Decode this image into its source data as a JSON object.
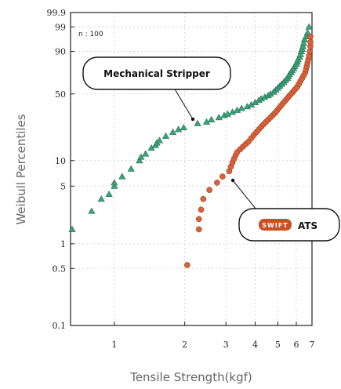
{
  "chart_data": {
    "type": "scatter",
    "xlabel": "Tensile Strength(kgf)",
    "ylabel": "Weibull Percentiles",
    "x_scale": "log",
    "y_scale": "weibull",
    "xlim": [
      0.65,
      7.0
    ],
    "ylim": [
      0.1,
      99.9
    ],
    "x_ticks": [
      {
        "value": 1,
        "label": "1"
      },
      {
        "value": 2,
        "label": "2"
      },
      {
        "value": 3,
        "label": "3"
      },
      {
        "value": 4,
        "label": "4"
      },
      {
        "value": 5,
        "label": "5"
      },
      {
        "value": 6,
        "label": "6"
      },
      {
        "value": 7,
        "label": "7"
      }
    ],
    "y_ticks": [
      {
        "value": 0.1,
        "label": "0.1"
      },
      {
        "value": 0.5,
        "label": "0.5"
      },
      {
        "value": 1,
        "label": "1"
      },
      {
        "value": 5,
        "label": "5"
      },
      {
        "value": 10,
        "label": "10"
      },
      {
        "value": 50,
        "label": "50"
      },
      {
        "value": 90,
        "label": "90"
      },
      {
        "value": 99,
        "label": "99"
      },
      {
        "value": 99.9,
        "label": "99.9"
      }
    ],
    "grid": true,
    "annotation": "n : 100",
    "series": [
      {
        "name": "Mechanical Stripper",
        "marker": "triangle",
        "color": "#3aa37a",
        "points": [
          [
            0.66,
            1.5
          ],
          [
            0.8,
            2.5
          ],
          [
            0.88,
            3.5
          ],
          [
            0.95,
            4.0
          ],
          [
            1.0,
            5.0
          ],
          [
            1.0,
            5.5
          ],
          [
            1.08,
            6.5
          ],
          [
            1.18,
            8.0
          ],
          [
            1.28,
            10.0
          ],
          [
            1.3,
            11.0
          ],
          [
            1.36,
            12.0
          ],
          [
            1.44,
            14.0
          ],
          [
            1.5,
            15.0
          ],
          [
            1.52,
            16.0
          ],
          [
            1.56,
            17.0
          ],
          [
            1.66,
            19.0
          ],
          [
            1.78,
            21.0
          ],
          [
            1.88,
            22.5
          ],
          [
            1.98,
            23.5
          ],
          [
            2.27,
            26.0
          ],
          [
            2.48,
            27.0
          ],
          [
            2.6,
            28.5
          ],
          [
            2.8,
            30.0
          ],
          [
            2.95,
            31.5
          ],
          [
            3.05,
            32.5
          ],
          [
            3.2,
            34.0
          ],
          [
            3.35,
            35.5
          ],
          [
            3.5,
            37.0
          ],
          [
            3.7,
            38.5
          ],
          [
            3.85,
            40.0
          ],
          [
            4.0,
            42.0
          ],
          [
            4.15,
            44.0
          ],
          [
            4.25,
            45.5
          ],
          [
            4.4,
            47.0
          ],
          [
            4.55,
            48.5
          ],
          [
            4.65,
            50.0
          ],
          [
            4.8,
            52.0
          ],
          [
            4.9,
            54.0
          ],
          [
            5.0,
            56.0
          ],
          [
            5.1,
            58.0
          ],
          [
            5.2,
            60.0
          ],
          [
            5.3,
            62.0
          ],
          [
            5.4,
            64.0
          ],
          [
            5.5,
            66.0
          ],
          [
            5.55,
            68.0
          ],
          [
            5.6,
            70.0
          ],
          [
            5.7,
            72.0
          ],
          [
            5.75,
            74.0
          ],
          [
            5.85,
            76.0
          ],
          [
            5.9,
            78.0
          ],
          [
            6.0,
            80.0
          ],
          [
            6.05,
            82.0
          ],
          [
            6.1,
            84.0
          ],
          [
            6.2,
            86.0
          ],
          [
            6.25,
            88.0
          ],
          [
            6.3,
            90.0
          ],
          [
            6.35,
            91.5
          ],
          [
            6.4,
            93.0
          ],
          [
            6.45,
            94.5
          ],
          [
            6.5,
            96.0
          ],
          [
            6.6,
            97.0
          ],
          [
            6.7,
            98.0
          ],
          [
            6.8,
            99.0
          ]
        ]
      },
      {
        "name": "ATS",
        "marker": "circle",
        "color": "#d8623a",
        "points": [
          [
            2.05,
            0.55
          ],
          [
            2.3,
            1.5
          ],
          [
            2.3,
            2.0
          ],
          [
            2.35,
            2.6
          ],
          [
            2.4,
            3.5
          ],
          [
            2.55,
            4.5
          ],
          [
            2.75,
            5.5
          ],
          [
            2.9,
            6.5
          ],
          [
            3.1,
            7.5
          ],
          [
            3.15,
            8.5
          ],
          [
            3.2,
            9.5
          ],
          [
            3.25,
            10.5
          ],
          [
            3.3,
            11.5
          ],
          [
            3.35,
            12.5
          ],
          [
            3.45,
            13.5
          ],
          [
            3.55,
            14.5
          ],
          [
            3.65,
            15.5
          ],
          [
            3.75,
            16.5
          ],
          [
            3.85,
            18.0
          ],
          [
            3.95,
            19.5
          ],
          [
            4.05,
            21.0
          ],
          [
            4.15,
            22.5
          ],
          [
            4.25,
            24.0
          ],
          [
            4.35,
            25.5
          ],
          [
            4.45,
            27.0
          ],
          [
            4.55,
            28.5
          ],
          [
            4.65,
            30.0
          ],
          [
            4.75,
            31.5
          ],
          [
            4.85,
            33.0
          ],
          [
            4.95,
            35.0
          ],
          [
            5.05,
            37.0
          ],
          [
            5.15,
            39.0
          ],
          [
            5.25,
            41.0
          ],
          [
            5.35,
            43.0
          ],
          [
            5.45,
            45.0
          ],
          [
            5.55,
            47.0
          ],
          [
            5.65,
            49.0
          ],
          [
            5.75,
            51.0
          ],
          [
            5.85,
            53.0
          ],
          [
            5.95,
            55.0
          ],
          [
            6.05,
            57.0
          ],
          [
            6.15,
            60.0
          ],
          [
            6.25,
            63.0
          ],
          [
            6.35,
            66.0
          ],
          [
            6.45,
            69.0
          ],
          [
            6.55,
            72.0
          ],
          [
            6.6,
            75.0
          ],
          [
            6.65,
            78.0
          ],
          [
            6.7,
            81.0
          ],
          [
            6.75,
            84.0
          ],
          [
            6.8,
            87.0
          ],
          [
            6.85,
            90.0
          ],
          [
            6.9,
            93.0
          ],
          [
            6.95,
            95.0
          ],
          [
            7.0,
            97.0
          ]
        ]
      }
    ]
  },
  "callouts": {
    "mechanical": "Mechanical Stripper",
    "ats": "ATS",
    "ats_logo": "SWIFT"
  },
  "colors": {
    "triangle": "#3aa37a",
    "circle": "#d8623a",
    "logo": "#c94f26"
  }
}
